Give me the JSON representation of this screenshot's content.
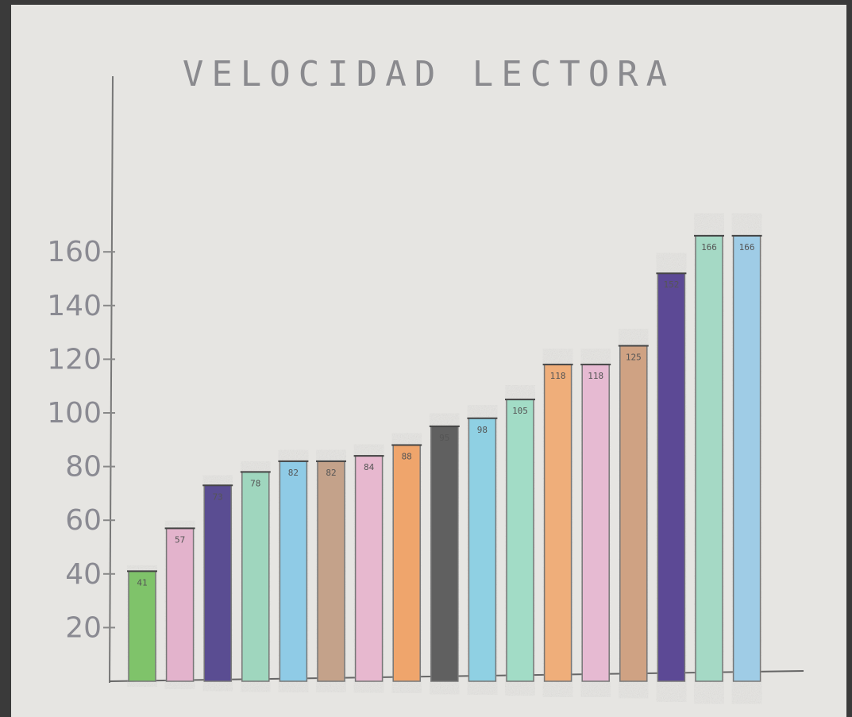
{
  "chart_data": {
    "type": "bar",
    "title": "VELOCIDAD LECTORA",
    "xlabel": "",
    "ylabel": "",
    "ylim": [
      0,
      170
    ],
    "yticks": [
      20,
      40,
      60,
      80,
      100,
      120,
      140,
      160
    ],
    "grid": false,
    "legend": "none",
    "values": [
      41,
      57,
      73,
      78,
      82,
      82,
      84,
      88,
      95,
      98,
      105,
      118,
      118,
      125,
      152,
      166,
      166
    ],
    "colors": [
      "#7fc36a",
      "#e3b3cc",
      "#5a4d92",
      "#9fd6be",
      "#8fcbe6",
      "#c4a28a",
      "#e7b8cf",
      "#efa56c",
      "#616161",
      "#8fd0e3",
      "#a2dcc6",
      "#efae7a",
      "#e6bad2",
      "#cfa283",
      "#5b4a95",
      "#a5d9c5",
      "#9fcce6"
    ]
  }
}
